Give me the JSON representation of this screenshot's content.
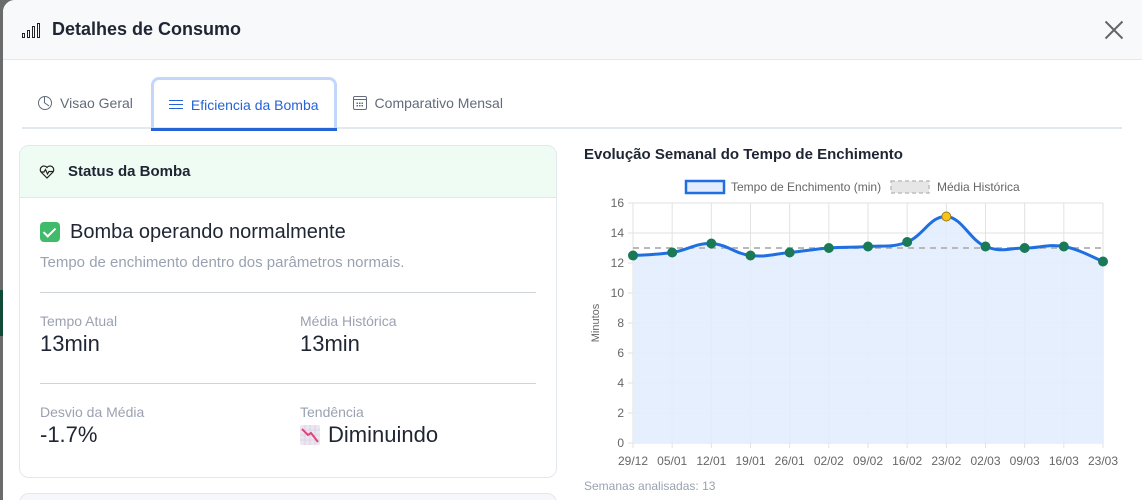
{
  "modal": {
    "title": "Detalhes de Consumo",
    "title_icon": "bar-chart-icon",
    "close_icon": "close-icon"
  },
  "tabs": [
    {
      "label": "Visao Geral",
      "icon": "pie-chart-icon",
      "active": false
    },
    {
      "label": "Eficiencia da Bomba",
      "icon": "waves-icon",
      "active": true
    },
    {
      "label": "Comparativo Mensal",
      "icon": "calendar-icon",
      "active": false
    }
  ],
  "status_card": {
    "title": "Status da Bomba",
    "icon": "heart-pulse-icon",
    "status_icon": "check-box-icon",
    "status_text": "Bomba operando normalmente",
    "status_subtext": "Tempo de enchimento dentro dos parâmetros normais.",
    "stats": [
      {
        "label": "Tempo Atual",
        "value": "13min"
      },
      {
        "label": "Média Histórica",
        "value": "13min"
      },
      {
        "label": "Desvio da Média",
        "value": "-1.7%"
      },
      {
        "label": "Tendência",
        "value": "Diminuindo",
        "icon": "chart-decreasing-icon"
      }
    ]
  },
  "chart": {
    "title": "Evolução Semanal do Tempo de Enchimento",
    "footer": "Semanas analisadas: 13"
  },
  "colors": {
    "accent": "#2563d6",
    "line": "#1f6fe0",
    "fill": "#e3edfd",
    "point": "#1a7a57",
    "highlight_point": "#f5c518",
    "average_line": "#b9b9b9",
    "status_header_bg": "#effcf3"
  },
  "chart_data": {
    "type": "line",
    "title": "Evolução Semanal do Tempo de Enchimento",
    "xlabel": "",
    "ylabel": "Minutos",
    "ylim": [
      0,
      16
    ],
    "yticks": [
      0,
      2,
      4,
      6,
      8,
      10,
      12,
      14,
      16
    ],
    "grid": true,
    "legend_position": "top",
    "categories": [
      "29/12",
      "05/01",
      "12/01",
      "19/01",
      "26/01",
      "02/02",
      "09/02",
      "16/02",
      "23/02",
      "02/03",
      "09/03",
      "16/03",
      "23/03"
    ],
    "series": [
      {
        "name": "Tempo de Enchimento (min)",
        "style": "solid-filled",
        "values": [
          12.5,
          12.7,
          13.3,
          12.5,
          12.7,
          13.0,
          13.1,
          13.4,
          15.1,
          13.1,
          13.0,
          13.1,
          12.1
        ],
        "highlight_index": 8
      },
      {
        "name": "Média Histórica",
        "style": "dashed",
        "values": [
          13.0,
          13.0,
          13.0,
          13.0,
          13.0,
          13.0,
          13.0,
          13.0,
          13.0,
          13.0,
          13.0,
          13.0,
          13.0
        ]
      }
    ],
    "footer": "Semanas analisadas: 13"
  }
}
